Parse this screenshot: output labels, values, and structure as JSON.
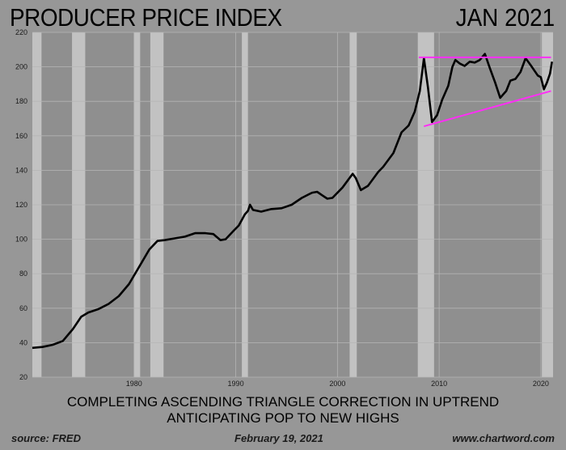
{
  "chart_data": {
    "type": "line",
    "title": "PRODUCER PRICE INDEX",
    "date_label": "JAN 2021",
    "subtitle_lines": [
      "COMPLETING ASCENDING TRIANGLE CORRECTION IN UPTREND",
      "ANTICIPATING POP TO NEW HIGHS"
    ],
    "source": "source: FRED",
    "footer_date": "February 19, 2021",
    "website": "www.chartword.com",
    "xlabel": "",
    "ylabel": "",
    "xlim": [
      1970,
      2021.2
    ],
    "ylim": [
      20,
      220
    ],
    "yticks": [
      20,
      40,
      60,
      80,
      100,
      120,
      140,
      160,
      180,
      200,
      220
    ],
    "xticks": [
      1980,
      1990,
      2000,
      2010,
      2020
    ],
    "grid": true,
    "recessions": [
      [
        1970.0,
        1970.9
      ],
      [
        1973.9,
        1975.2
      ],
      [
        1980.0,
        1980.6
      ],
      [
        1981.6,
        1982.9
      ],
      [
        1990.6,
        1991.2
      ],
      [
        2001.2,
        2001.9
      ],
      [
        2007.9,
        2009.5
      ],
      [
        2020.1,
        2021.2
      ]
    ],
    "series": [
      {
        "color": "#000000",
        "points": [
          [
            1970.0,
            37.0
          ],
          [
            1971.0,
            37.5
          ],
          [
            1972.0,
            38.8
          ],
          [
            1973.0,
            41.0
          ],
          [
            1974.0,
            48.0
          ],
          [
            1974.8,
            55.0
          ],
          [
            1975.5,
            57.5
          ],
          [
            1976.5,
            59.5
          ],
          [
            1977.5,
            62.5
          ],
          [
            1978.5,
            67.0
          ],
          [
            1979.5,
            74.0
          ],
          [
            1980.5,
            84.0
          ],
          [
            1981.5,
            94.0
          ],
          [
            1982.3,
            99.0
          ],
          [
            1983.0,
            99.5
          ],
          [
            1984.0,
            100.5
          ],
          [
            1985.0,
            101.5
          ],
          [
            1986.0,
            103.5
          ],
          [
            1987.0,
            103.5
          ],
          [
            1987.8,
            103.0
          ],
          [
            1988.5,
            99.5
          ],
          [
            1989.0,
            100.0
          ],
          [
            1989.8,
            105.0
          ],
          [
            1990.3,
            108.0
          ],
          [
            1990.9,
            114.5
          ],
          [
            1991.2,
            116.5
          ],
          [
            1991.4,
            120.0
          ],
          [
            1991.7,
            117.0
          ],
          [
            1992.5,
            116.0
          ],
          [
            1993.5,
            117.5
          ],
          [
            1994.5,
            118.0
          ],
          [
            1995.5,
            120.0
          ],
          [
            1996.5,
            124.0
          ],
          [
            1997.5,
            127.0
          ],
          [
            1998.0,
            127.5
          ],
          [
            1998.5,
            125.5
          ],
          [
            1999.0,
            123.5
          ],
          [
            1999.5,
            124.0
          ],
          [
            2000.5,
            130.0
          ],
          [
            2001.0,
            134.0
          ],
          [
            2001.5,
            138.0
          ],
          [
            2001.8,
            135.5
          ],
          [
            2002.3,
            128.5
          ],
          [
            2003.0,
            131.0
          ],
          [
            2004.0,
            139.0
          ],
          [
            2004.5,
            142.0
          ],
          [
            2005.5,
            150.0
          ],
          [
            2006.3,
            162.0
          ],
          [
            2007.0,
            166.0
          ],
          [
            2007.6,
            174.0
          ],
          [
            2008.1,
            186.0
          ],
          [
            2008.5,
            205.0
          ],
          [
            2008.9,
            188.0
          ],
          [
            2009.3,
            168.0
          ],
          [
            2009.8,
            172.0
          ],
          [
            2010.3,
            181.0
          ],
          [
            2010.9,
            189.0
          ],
          [
            2011.3,
            200.0
          ],
          [
            2011.6,
            204.0
          ],
          [
            2012.0,
            202.0
          ],
          [
            2012.5,
            200.5
          ],
          [
            2013.0,
            203.0
          ],
          [
            2013.5,
            202.5
          ],
          [
            2014.0,
            204.0
          ],
          [
            2014.5,
            207.5
          ],
          [
            2015.0,
            199.0
          ],
          [
            2015.5,
            191.0
          ],
          [
            2016.0,
            182.0
          ],
          [
            2016.6,
            186.0
          ],
          [
            2017.0,
            192.0
          ],
          [
            2017.5,
            193.0
          ],
          [
            2018.0,
            197.0
          ],
          [
            2018.5,
            205.0
          ],
          [
            2019.0,
            201.0
          ],
          [
            2019.7,
            195.0
          ],
          [
            2020.0,
            194.0
          ],
          [
            2020.3,
            187.0
          ],
          [
            2020.6,
            191.0
          ],
          [
            2020.9,
            196.0
          ],
          [
            2021.1,
            203.0
          ]
        ]
      }
    ],
    "annotations": [
      {
        "type": "line",
        "color": "#ff2ef6",
        "from": [
          2008.0,
          205.5
        ],
        "to": [
          2021.0,
          205.5
        ]
      },
      {
        "type": "line",
        "color": "#ff2ef6",
        "from": [
          2008.5,
          165.5
        ],
        "to": [
          2021.0,
          186.0
        ]
      }
    ]
  }
}
